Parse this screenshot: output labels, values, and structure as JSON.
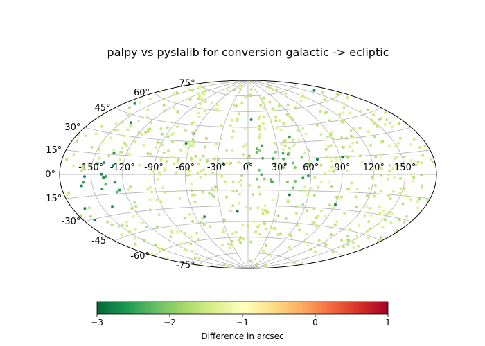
{
  "chart_data": {
    "type": "scatter",
    "projection": "aitoff",
    "title": "palpy vs pyslalib for conversion galactic -> ecliptic",
    "grid": true,
    "longitude_ticks": [
      "-150°",
      "-120°",
      "-90°",
      "-60°",
      "-30°",
      "0°",
      "30°",
      "60°",
      "90°",
      "120°",
      "150°"
    ],
    "longitude_tick_values": [
      -150,
      -120,
      -90,
      -60,
      -30,
      0,
      30,
      60,
      90,
      120,
      150
    ],
    "latitude_ticks": [
      "-75°",
      "-60°",
      "-45°",
      "-30°",
      "-15°",
      "0°",
      "15°",
      "30°",
      "45°",
      "60°",
      "75°"
    ],
    "latitude_tick_values": [
      -75,
      -60,
      -45,
      -30,
      -15,
      0,
      15,
      30,
      45,
      60,
      75
    ],
    "xlim": [
      -180,
      180
    ],
    "ylim": [
      -90,
      90
    ],
    "colorbar": {
      "label": "Difference in arcsec",
      "colormap": "RdYlGn_r",
      "range": [
        -3,
        1
      ],
      "ticks": [
        "−3",
        "−2",
        "−1",
        "0",
        "1"
      ],
      "tick_values": [
        -3,
        -2,
        -1,
        0,
        1
      ],
      "orientation": "horizontal"
    },
    "points": {
      "count": 700,
      "typical_value": -1.5,
      "min_value": -2.9,
      "dense_regions": [
        {
          "lon": 40,
          "lat": 3,
          "value": -2.3
        },
        {
          "lon": -140,
          "lat": -10,
          "value": -2.5
        },
        {
          "lon": 20,
          "lat": 10,
          "value": -2.2
        }
      ]
    }
  }
}
